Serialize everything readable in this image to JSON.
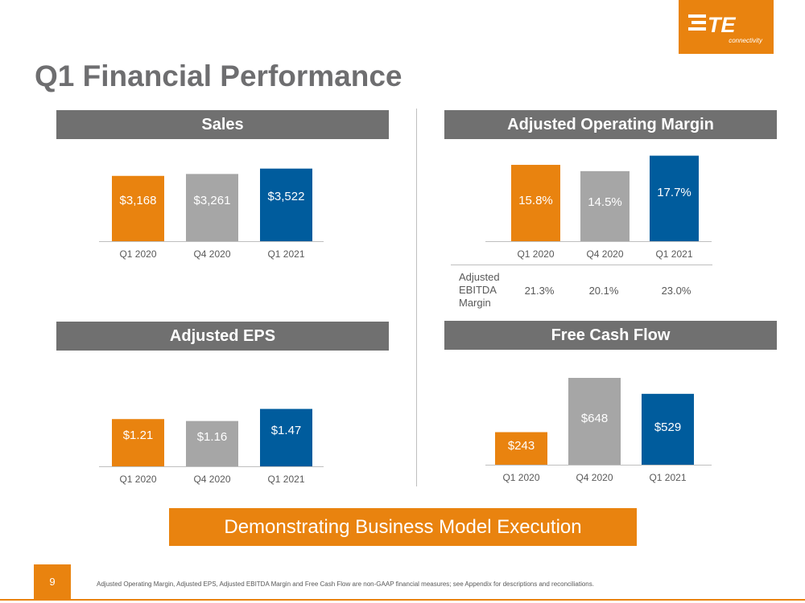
{
  "page_title": "Q1 Financial Performance",
  "logo": {
    "text": "TE",
    "subtitle": "connectivity",
    "color": "#E9830F"
  },
  "colors": {
    "q1_2020": "#E9830F",
    "q4_2020": "#A6A6A6",
    "q1_2021": "#005C9D",
    "header": "#707070"
  },
  "chart_data": [
    {
      "type": "bar",
      "title": "Sales",
      "categories": [
        "Q1 2020",
        "Q4 2020",
        "Q1 2021"
      ],
      "values": [
        3168,
        3261,
        3522
      ],
      "labels": [
        "$3,168",
        "$3,261",
        "$3,522"
      ],
      "ylim": [
        0,
        3900
      ]
    },
    {
      "type": "bar",
      "title": "Adjusted Operating Margin",
      "categories": [
        "Q1 2020",
        "Q4 2020",
        "Q1 2021"
      ],
      "values": [
        15.8,
        14.5,
        17.7
      ],
      "labels": [
        "15.8%",
        "14.5%",
        "17.7%"
      ],
      "ylim": [
        0,
        19.3
      ]
    },
    {
      "type": "bar",
      "title": "Adjusted EPS",
      "categories": [
        "Q1 2020",
        "Q4 2020",
        "Q1 2021"
      ],
      "values": [
        1.21,
        1.16,
        1.47
      ],
      "labels": [
        "$1.21",
        "$1.16",
        "$1.47"
      ],
      "ylim": [
        0,
        1.75
      ]
    },
    {
      "type": "bar",
      "title": "Free Cash Flow",
      "categories": [
        "Q1 2020",
        "Q4 2020",
        "Q1 2021"
      ],
      "values": [
        243,
        648,
        529
      ],
      "labels": [
        "$243",
        "$648",
        "$529"
      ],
      "ylim": [
        0,
        648
      ]
    }
  ],
  "ebitda": {
    "label_lines": [
      "Adjusted",
      "EBITDA",
      "Margin"
    ],
    "values": [
      "21.3%",
      "20.1%",
      "23.0%"
    ]
  },
  "banner": "Demonstrating Business Model Execution",
  "page_number": "9",
  "footnote": "Adjusted Operating Margin, Adjusted EPS, Adjusted EBITDA Margin and Free Cash Flow are non-GAAP financial measures; see Appendix for descriptions and reconciliations."
}
